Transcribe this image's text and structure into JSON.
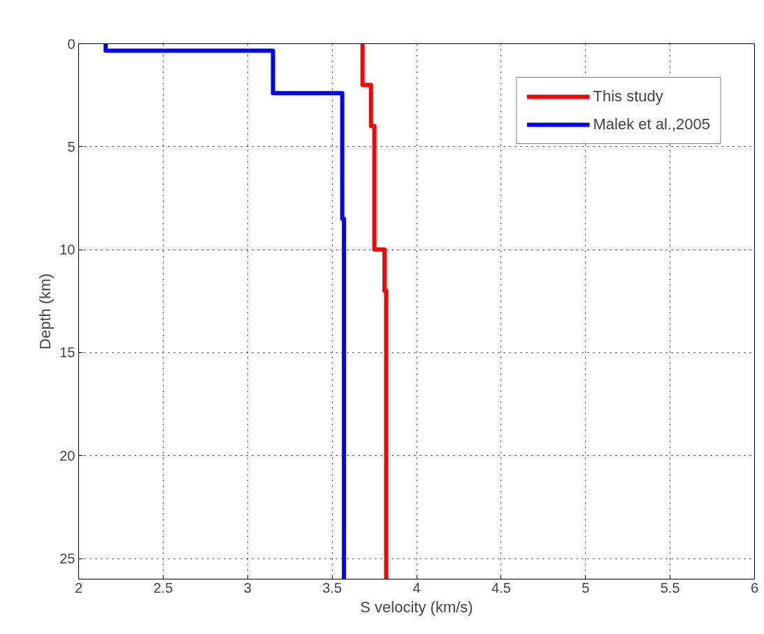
{
  "chart_data": {
    "type": "line",
    "xlabel": "S velocity (km/s)",
    "ylabel": "Depth (km)",
    "xlim": [
      2,
      6
    ],
    "ylim": [
      26,
      0
    ],
    "xticks": [
      2,
      2.5,
      3,
      3.5,
      4,
      4.5,
      5,
      5.5,
      6
    ],
    "yticks": [
      0,
      5,
      10,
      15,
      20,
      25
    ],
    "grid": true,
    "legend": "top right",
    "line_style": "solid",
    "marker": "none",
    "series": [
      {
        "name": "This study",
        "color": "#ff0000",
        "x": [
          3.68,
          3.68,
          3.73,
          3.73,
          3.75,
          3.75,
          3.81,
          3.81,
          3.82,
          3.82
        ],
        "values": [
          0,
          2,
          2,
          4,
          4,
          10,
          10,
          12,
          12,
          26
        ]
      },
      {
        "name": "Malek et al.,2005",
        "color": "#0000ff",
        "x": [
          2.16,
          2.16,
          3.15,
          3.15,
          3.56,
          3.56,
          3.57,
          3.57
        ],
        "values": [
          0,
          0.34,
          0.34,
          2.4,
          2.4,
          8.5,
          8.5,
          26
        ]
      }
    ]
  }
}
